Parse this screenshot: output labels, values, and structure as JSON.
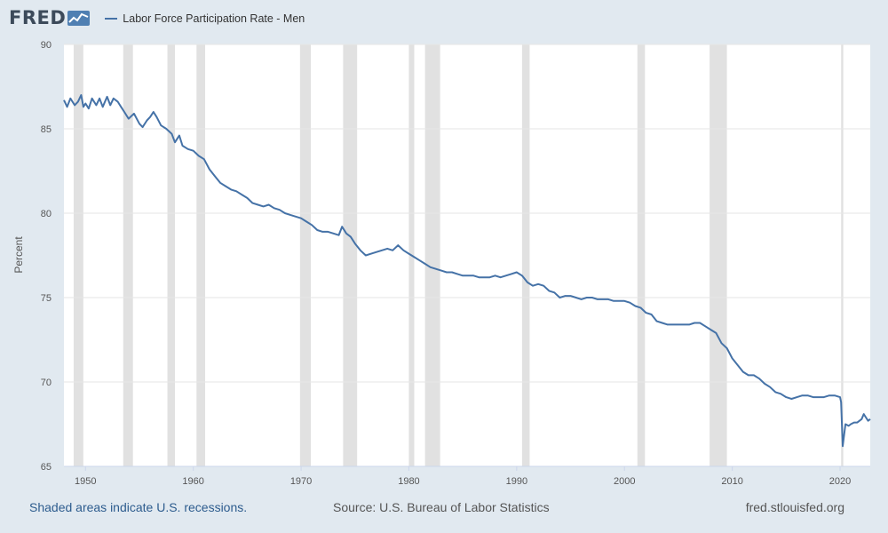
{
  "header": {
    "logo_text": "FRED",
    "series_label": "Labor Force Participation Rate - Men",
    "line_color": "#4572a7"
  },
  "footer": {
    "recessions_note": "Shaded areas indicate U.S. recessions.",
    "source": "Source: U.S. Bureau of Labor Statistics",
    "site": "fred.stlouisfed.org"
  },
  "chart_data": {
    "type": "line",
    "title": "Labor Force Participation Rate - Men",
    "xlabel": "",
    "ylabel": "Percent",
    "xlim": [
      1948.0,
      2022.8
    ],
    "ylim": [
      65,
      90
    ],
    "x_ticks": [
      1950,
      1960,
      1970,
      1980,
      1990,
      2000,
      2010,
      2020
    ],
    "y_ticks": [
      65,
      70,
      75,
      80,
      85,
      90
    ],
    "grid": true,
    "recession_shading": [
      [
        1948.9,
        1949.8
      ],
      [
        1953.5,
        1954.4
      ],
      [
        1957.6,
        1958.3
      ],
      [
        1960.3,
        1961.1
      ],
      [
        1969.9,
        1970.9
      ],
      [
        1973.9,
        1975.2
      ],
      [
        1980.0,
        1980.5
      ],
      [
        1981.5,
        1982.9
      ],
      [
        1990.5,
        1991.2
      ],
      [
        2001.2,
        2001.9
      ],
      [
        2007.9,
        2009.5
      ],
      [
        2020.1,
        2020.3
      ]
    ],
    "series": [
      {
        "color": "#4572a7",
        "points": [
          [
            1948.0,
            86.7
          ],
          [
            1948.3,
            86.3
          ],
          [
            1948.6,
            86.8
          ],
          [
            1949.0,
            86.4
          ],
          [
            1949.3,
            86.6
          ],
          [
            1949.6,
            87.0
          ],
          [
            1949.8,
            86.3
          ],
          [
            1950.0,
            86.5
          ],
          [
            1950.3,
            86.2
          ],
          [
            1950.6,
            86.8
          ],
          [
            1951.0,
            86.4
          ],
          [
            1951.3,
            86.8
          ],
          [
            1951.6,
            86.3
          ],
          [
            1952.0,
            86.9
          ],
          [
            1952.3,
            86.4
          ],
          [
            1952.6,
            86.8
          ],
          [
            1953.0,
            86.6
          ],
          [
            1953.3,
            86.3
          ],
          [
            1953.6,
            86.0
          ],
          [
            1954.0,
            85.6
          ],
          [
            1954.5,
            85.9
          ],
          [
            1955.0,
            85.3
          ],
          [
            1955.3,
            85.1
          ],
          [
            1955.7,
            85.5
          ],
          [
            1956.0,
            85.7
          ],
          [
            1956.3,
            86.0
          ],
          [
            1956.6,
            85.7
          ],
          [
            1957.0,
            85.2
          ],
          [
            1957.5,
            85.0
          ],
          [
            1958.0,
            84.7
          ],
          [
            1958.3,
            84.2
          ],
          [
            1958.7,
            84.6
          ],
          [
            1959.0,
            84.0
          ],
          [
            1959.5,
            83.8
          ],
          [
            1960.0,
            83.7
          ],
          [
            1960.5,
            83.4
          ],
          [
            1961.0,
            83.2
          ],
          [
            1961.5,
            82.6
          ],
          [
            1962.0,
            82.2
          ],
          [
            1962.5,
            81.8
          ],
          [
            1963.0,
            81.6
          ],
          [
            1963.5,
            81.4
          ],
          [
            1964.0,
            81.3
          ],
          [
            1964.5,
            81.1
          ],
          [
            1965.0,
            80.9
          ],
          [
            1965.5,
            80.6
          ],
          [
            1966.0,
            80.5
          ],
          [
            1966.5,
            80.4
          ],
          [
            1967.0,
            80.5
          ],
          [
            1967.5,
            80.3
          ],
          [
            1968.0,
            80.2
          ],
          [
            1968.5,
            80.0
          ],
          [
            1969.0,
            79.9
          ],
          [
            1969.5,
            79.8
          ],
          [
            1970.0,
            79.7
          ],
          [
            1970.5,
            79.5
          ],
          [
            1971.0,
            79.3
          ],
          [
            1971.5,
            79.0
          ],
          [
            1972.0,
            78.9
          ],
          [
            1972.5,
            78.9
          ],
          [
            1973.0,
            78.8
          ],
          [
            1973.5,
            78.7
          ],
          [
            1973.8,
            79.2
          ],
          [
            1974.2,
            78.8
          ],
          [
            1974.6,
            78.6
          ],
          [
            1975.0,
            78.2
          ],
          [
            1975.5,
            77.8
          ],
          [
            1976.0,
            77.5
          ],
          [
            1976.5,
            77.6
          ],
          [
            1977.0,
            77.7
          ],
          [
            1977.5,
            77.8
          ],
          [
            1978.0,
            77.9
          ],
          [
            1978.5,
            77.8
          ],
          [
            1979.0,
            78.1
          ],
          [
            1979.5,
            77.8
          ],
          [
            1980.0,
            77.6
          ],
          [
            1980.5,
            77.4
          ],
          [
            1981.0,
            77.2
          ],
          [
            1981.5,
            77.0
          ],
          [
            1982.0,
            76.8
          ],
          [
            1982.5,
            76.7
          ],
          [
            1983.0,
            76.6
          ],
          [
            1983.5,
            76.5
          ],
          [
            1984.0,
            76.5
          ],
          [
            1984.5,
            76.4
          ],
          [
            1985.0,
            76.3
          ],
          [
            1985.5,
            76.3
          ],
          [
            1986.0,
            76.3
          ],
          [
            1986.5,
            76.2
          ],
          [
            1987.0,
            76.2
          ],
          [
            1987.5,
            76.2
          ],
          [
            1988.0,
            76.3
          ],
          [
            1988.5,
            76.2
          ],
          [
            1989.0,
            76.3
          ],
          [
            1989.5,
            76.4
          ],
          [
            1990.0,
            76.5
          ],
          [
            1990.5,
            76.3
          ],
          [
            1991.0,
            75.9
          ],
          [
            1991.5,
            75.7
          ],
          [
            1992.0,
            75.8
          ],
          [
            1992.5,
            75.7
          ],
          [
            1993.0,
            75.4
          ],
          [
            1993.5,
            75.3
          ],
          [
            1994.0,
            75.0
          ],
          [
            1994.5,
            75.1
          ],
          [
            1995.0,
            75.1
          ],
          [
            1995.5,
            75.0
          ],
          [
            1996.0,
            74.9
          ],
          [
            1996.5,
            75.0
          ],
          [
            1997.0,
            75.0
          ],
          [
            1997.5,
            74.9
          ],
          [
            1998.0,
            74.9
          ],
          [
            1998.5,
            74.9
          ],
          [
            1999.0,
            74.8
          ],
          [
            1999.5,
            74.8
          ],
          [
            2000.0,
            74.8
          ],
          [
            2000.5,
            74.7
          ],
          [
            2001.0,
            74.5
          ],
          [
            2001.5,
            74.4
          ],
          [
            2002.0,
            74.1
          ],
          [
            2002.5,
            74.0
          ],
          [
            2003.0,
            73.6
          ],
          [
            2003.5,
            73.5
          ],
          [
            2004.0,
            73.4
          ],
          [
            2004.5,
            73.4
          ],
          [
            2005.0,
            73.4
          ],
          [
            2005.5,
            73.4
          ],
          [
            2006.0,
            73.4
          ],
          [
            2006.5,
            73.5
          ],
          [
            2007.0,
            73.5
          ],
          [
            2007.5,
            73.3
          ],
          [
            2008.0,
            73.1
          ],
          [
            2008.5,
            72.9
          ],
          [
            2009.0,
            72.3
          ],
          [
            2009.5,
            72.0
          ],
          [
            2010.0,
            71.4
          ],
          [
            2010.5,
            71.0
          ],
          [
            2011.0,
            70.6
          ],
          [
            2011.5,
            70.4
          ],
          [
            2012.0,
            70.4
          ],
          [
            2012.5,
            70.2
          ],
          [
            2013.0,
            69.9
          ],
          [
            2013.5,
            69.7
          ],
          [
            2014.0,
            69.4
          ],
          [
            2014.5,
            69.3
          ],
          [
            2015.0,
            69.1
          ],
          [
            2015.5,
            69.0
          ],
          [
            2016.0,
            69.1
          ],
          [
            2016.5,
            69.2
          ],
          [
            2017.0,
            69.2
          ],
          [
            2017.5,
            69.1
          ],
          [
            2018.0,
            69.1
          ],
          [
            2018.5,
            69.1
          ],
          [
            2019.0,
            69.2
          ],
          [
            2019.5,
            69.2
          ],
          [
            2020.0,
            69.1
          ],
          [
            2020.1,
            68.8
          ],
          [
            2020.25,
            66.2
          ],
          [
            2020.4,
            67.0
          ],
          [
            2020.5,
            67.5
          ],
          [
            2020.8,
            67.4
          ],
          [
            2021.0,
            67.5
          ],
          [
            2021.3,
            67.6
          ],
          [
            2021.6,
            67.6
          ],
          [
            2022.0,
            67.8
          ],
          [
            2022.2,
            68.1
          ],
          [
            2022.4,
            67.9
          ],
          [
            2022.6,
            67.7
          ],
          [
            2022.8,
            67.8
          ]
        ]
      }
    ]
  }
}
